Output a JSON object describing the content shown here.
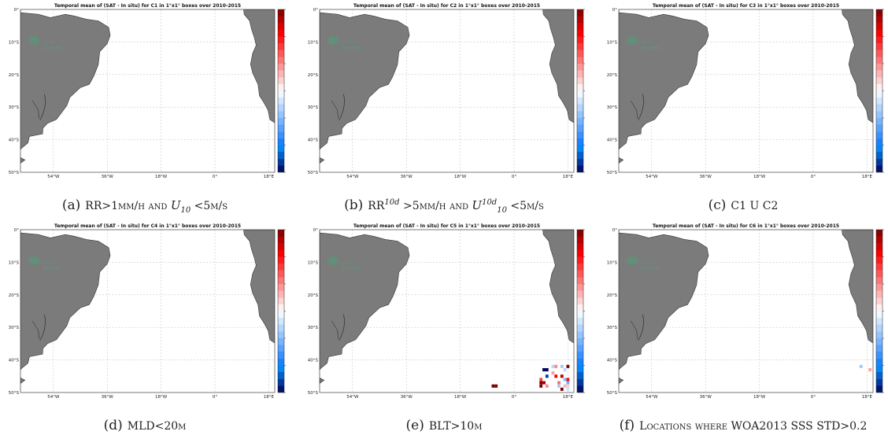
{
  "colorbar": {
    "ticks": [
      "1.5",
      "1",
      "0.5",
      "0",
      "-0.5",
      "-1",
      "-1.5"
    ],
    "tick_values": [
      1.5,
      1,
      0.5,
      0,
      -0.5,
      -1,
      -1.5
    ],
    "range": [
      -1.5,
      1.5
    ],
    "colormap": "blue-white-red",
    "colors": {
      "max": "#7a0000",
      "min": "#00005a",
      "mid": "#ffffff"
    }
  },
  "land_color": "#7b7b7b",
  "watermark": "pi-mep",
  "watermark_small": "salinity",
  "x_ticks": [
    "54°W",
    "36°W",
    "18°W",
    "0°",
    "18°E"
  ],
  "y_ticks": [
    "0°",
    "10°S",
    "20°S",
    "30°S",
    "40°S",
    "50°S"
  ],
  "panels": [
    {
      "title": "Temporal mean of (SAT - In situ) for C1 in 1°x1° boxes over 2010-2015",
      "caption": {
        "label": "(a)",
        "parts": [
          {
            "t": "RR>1mm/h and ",
            "s": "sc"
          },
          {
            "t": "U",
            "s": "it"
          },
          {
            "t": "10",
            "s": "sub"
          },
          {
            "t": " <5m/s",
            "s": "sc"
          }
        ]
      }
    },
    {
      "title": "Temporal mean of (SAT - In situ) for C2 in 1°x1° boxes over 2010-2015",
      "caption": {
        "label": "(b)",
        "parts": [
          {
            "t": "RR",
            "s": "sc"
          },
          {
            "t": "10d",
            "s": "sup"
          },
          {
            "t": " >5mm/h and ",
            "s": "sc"
          },
          {
            "t": "U",
            "s": "it"
          },
          {
            "t": "10d",
            "s": "sup"
          },
          {
            "t": "10",
            "s": "sub"
          },
          {
            "t": " <5m/s",
            "s": "sc"
          }
        ]
      }
    },
    {
      "title": "Temporal mean of (SAT - In situ) for C3 in 1°x1° boxes over 2010-2015",
      "caption": {
        "label": "(c)",
        "parts": [
          {
            "t": "C1 U C2",
            "s": "sc"
          }
        ]
      }
    },
    {
      "title": "Temporal mean of (SAT - In situ) for C4 in 1°x1° boxes over 2010-2015",
      "caption": {
        "label": "(d)",
        "parts": [
          {
            "t": "MLD<20m",
            "s": "sc"
          }
        ]
      }
    },
    {
      "title": "Temporal mean of (SAT - In situ) for C5 in 1°x1° boxes over 2010-2015",
      "caption": {
        "label": "(e)",
        "parts": [
          {
            "t": "BLT>10m",
            "s": "sc"
          }
        ]
      }
    },
    {
      "title": "Temporal mean of (SAT - In situ) for C6 in 1°x1° boxes over 2010-2015",
      "caption": {
        "label": "(f)",
        "parts": [
          {
            "t": "Locations where WOA2013 SSS STD>0.2",
            "s": "sc"
          }
        ]
      }
    }
  ],
  "chart_data": [
    {
      "type": "heatmap",
      "panel": "a",
      "x_range": [
        -65,
        20
      ],
      "y_range": [
        -50,
        0
      ],
      "points": []
    },
    {
      "type": "heatmap",
      "panel": "b",
      "x_range": [
        -65,
        20
      ],
      "y_range": [
        -50,
        0
      ],
      "points": []
    },
    {
      "type": "heatmap",
      "panel": "c",
      "x_range": [
        -65,
        20
      ],
      "y_range": [
        -50,
        0
      ],
      "points": []
    },
    {
      "type": "heatmap",
      "panel": "d",
      "x_range": [
        -65,
        20
      ],
      "y_range": [
        -50,
        0
      ],
      "points": []
    },
    {
      "type": "heatmap",
      "panel": "e",
      "x_range": [
        -65,
        20
      ],
      "y_range": [
        -50,
        0
      ],
      "points": [
        {
          "lon": -7,
          "lat": -48,
          "v": 1.5
        },
        {
          "lon": -6,
          "lat": -48,
          "v": 1.5
        },
        {
          "lon": 10,
          "lat": -43,
          "v": -1.5
        },
        {
          "lon": 11,
          "lat": -43,
          "v": -1.5
        },
        {
          "lon": 13,
          "lat": -42,
          "v": -0.3
        },
        {
          "lon": 14,
          "lat": -42,
          "v": 0.5
        },
        {
          "lon": 16,
          "lat": -42,
          "v": -0.4
        },
        {
          "lon": 17,
          "lat": -43,
          "v": -0.3
        },
        {
          "lon": 18,
          "lat": -42,
          "v": 1.5
        },
        {
          "lon": 11,
          "lat": -45,
          "v": -1.3
        },
        {
          "lon": 13,
          "lat": -44,
          "v": 0.4
        },
        {
          "lon": 14,
          "lat": -45,
          "v": 1.1
        },
        {
          "lon": 16,
          "lat": -45,
          "v": 1.3
        },
        {
          "lon": 17,
          "lat": -46,
          "v": -0.5
        },
        {
          "lon": 18,
          "lat": -46,
          "v": 1.0
        },
        {
          "lon": 9,
          "lat": -46,
          "v": 0.8
        },
        {
          "lon": 9,
          "lat": -47,
          "v": 1.5
        },
        {
          "lon": 9,
          "lat": -48,
          "v": 1.5
        },
        {
          "lon": 10,
          "lat": -47,
          "v": 1.4
        },
        {
          "lon": 11,
          "lat": -48,
          "v": 0.5
        },
        {
          "lon": 15,
          "lat": -47,
          "v": 0.6
        },
        {
          "lon": 15,
          "lat": -48,
          "v": -0.4
        },
        {
          "lon": 17,
          "lat": -48,
          "v": 0.3
        },
        {
          "lon": 18,
          "lat": -47,
          "v": -0.6
        },
        {
          "lon": 18,
          "lat": -48,
          "v": 0.2
        },
        {
          "lon": 16,
          "lat": -49,
          "v": 1.5
        },
        {
          "lon": 18,
          "lat": -49,
          "v": -0.2
        }
      ]
    },
    {
      "type": "heatmap",
      "panel": "f",
      "x_range": [
        -65,
        20
      ],
      "y_range": [
        -50,
        0
      ],
      "points": [
        {
          "lon": 16,
          "lat": -42,
          "v": -0.4
        },
        {
          "lon": 19,
          "lat": -43,
          "v": 0.4
        }
      ]
    }
  ]
}
